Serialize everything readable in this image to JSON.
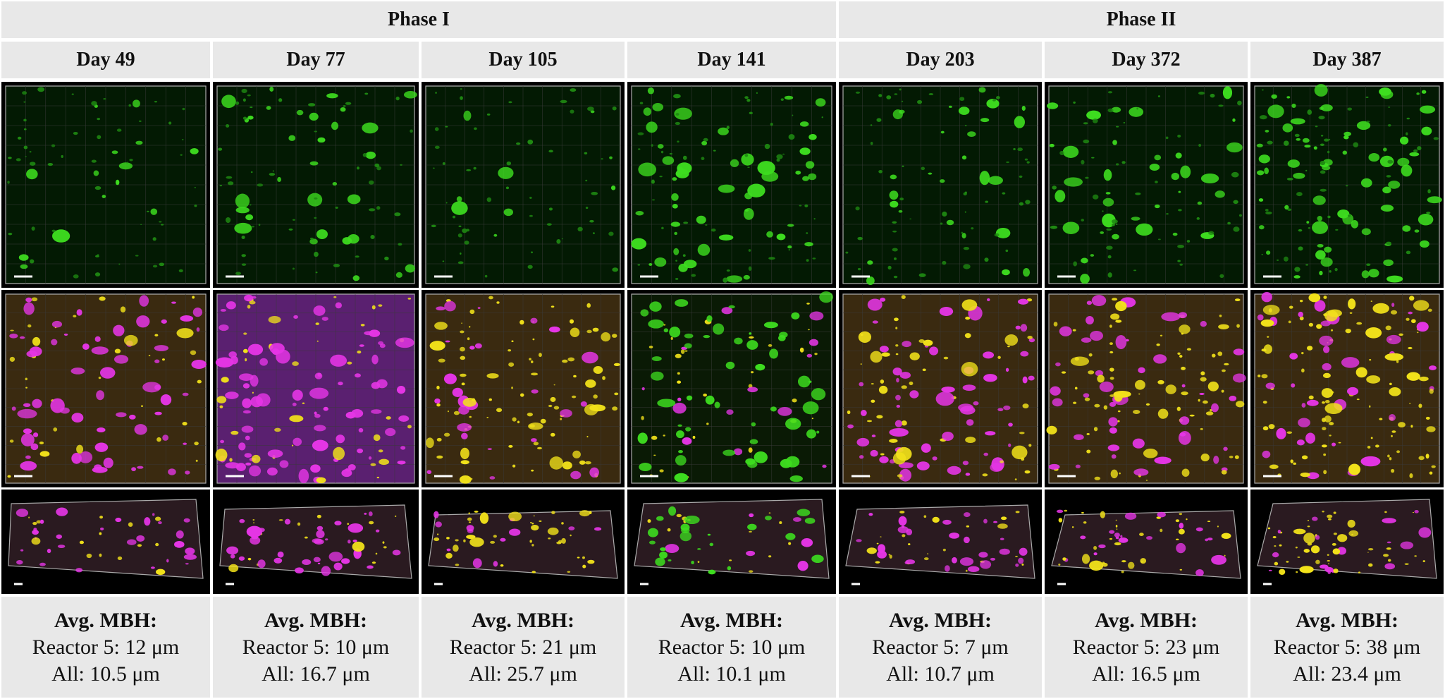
{
  "phases": [
    {
      "label": "Phase I"
    },
    {
      "label": "Phase II"
    }
  ],
  "columns": [
    {
      "day": "Day 49",
      "title": "Avg. MBH:",
      "reactor": "Reactor 5: 12 μm",
      "all": "All: 10.5 μm",
      "green_density": 0.15,
      "magenta_density": 0.7,
      "yellow_density": 0.25
    },
    {
      "day": "Day 77",
      "title": "Avg. MBH:",
      "reactor": "Reactor 5: 10 μm",
      "all": "All: 16.7 μm",
      "green_density": 0.35,
      "magenta_density": 0.9,
      "yellow_density": 0.3
    },
    {
      "day": "Day 105",
      "title": "Avg. MBH:",
      "reactor": "Reactor 5: 21 μm",
      "all": "All: 25.7 μm",
      "green_density": 0.1,
      "magenta_density": 0.3,
      "yellow_density": 0.7
    },
    {
      "day": "Day 141",
      "title": "Avg. MBH:",
      "reactor": "Reactor 5: 10 μm",
      "all": "All: 10.1 μm",
      "green_density": 0.6,
      "magenta_density": 0.15,
      "yellow_density": 0.35
    },
    {
      "day": "Day 203",
      "title": "Avg. MBH:",
      "reactor": "Reactor 5: 7 μm",
      "all": "All: 10.7 μm",
      "green_density": 0.3,
      "magenta_density": 0.7,
      "yellow_density": 0.4
    },
    {
      "day": "Day 372",
      "title": "Avg. MBH:",
      "reactor": "Reactor 5: 23 μm",
      "all": "All: 16.5 μm",
      "green_density": 0.4,
      "magenta_density": 0.5,
      "yellow_density": 0.6
    },
    {
      "day": "Day 387",
      "title": "Avg. MBH:",
      "reactor": "Reactor 5: 38 μm",
      "all": "All: 23.4 μm",
      "green_density": 0.8,
      "magenta_density": 0.4,
      "yellow_density": 0.8
    }
  ],
  "colors": {
    "header_bg": "#e8e8e8",
    "image_bg": "#000000",
    "green": "#3ddc1f",
    "magenta": "#e535e5",
    "yellow": "#f2e21a",
    "grid": "#3a3a3a"
  }
}
